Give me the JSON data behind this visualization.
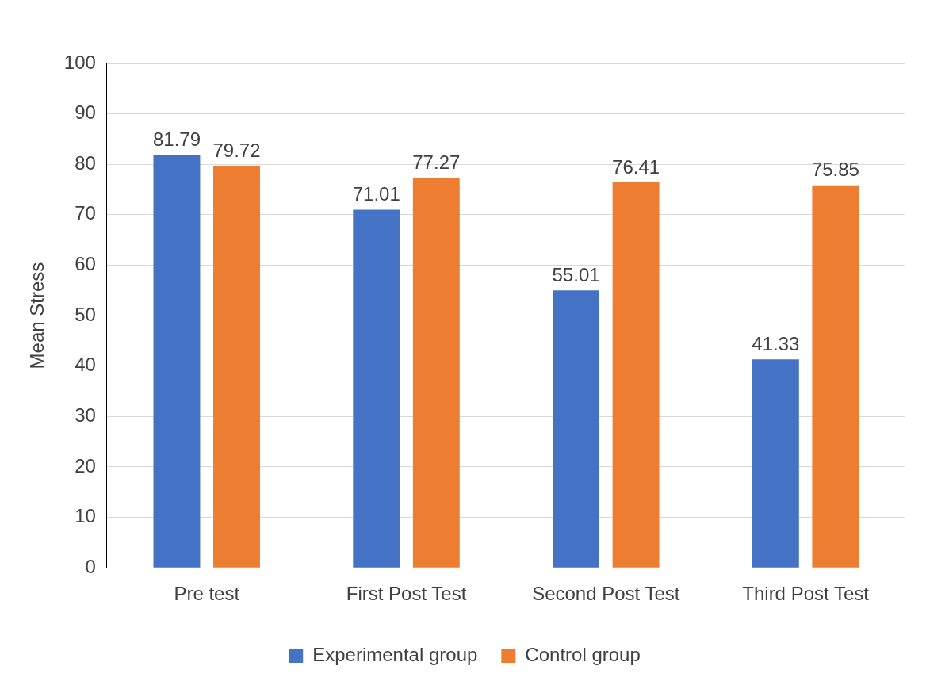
{
  "chart_data": {
    "type": "bar",
    "ylabel": "Mean Stress",
    "categories": [
      "Pre test",
      "First Post Test",
      "Second Post Test",
      "Third Post Test"
    ],
    "series": [
      {
        "name": "Experimental group",
        "color": "#4472c4",
        "values": [
          81.79,
          71.01,
          55.01,
          41.33
        ]
      },
      {
        "name": "Control group",
        "color": "#ed7d31",
        "values": [
          79.72,
          77.27,
          76.41,
          75.85
        ]
      }
    ],
    "ylim": [
      0,
      100
    ],
    "yticks": [
      0,
      10,
      20,
      30,
      40,
      50,
      60,
      70,
      80,
      90,
      100
    ],
    "grid": "y",
    "legend": "bottom",
    "data_labels": true
  }
}
